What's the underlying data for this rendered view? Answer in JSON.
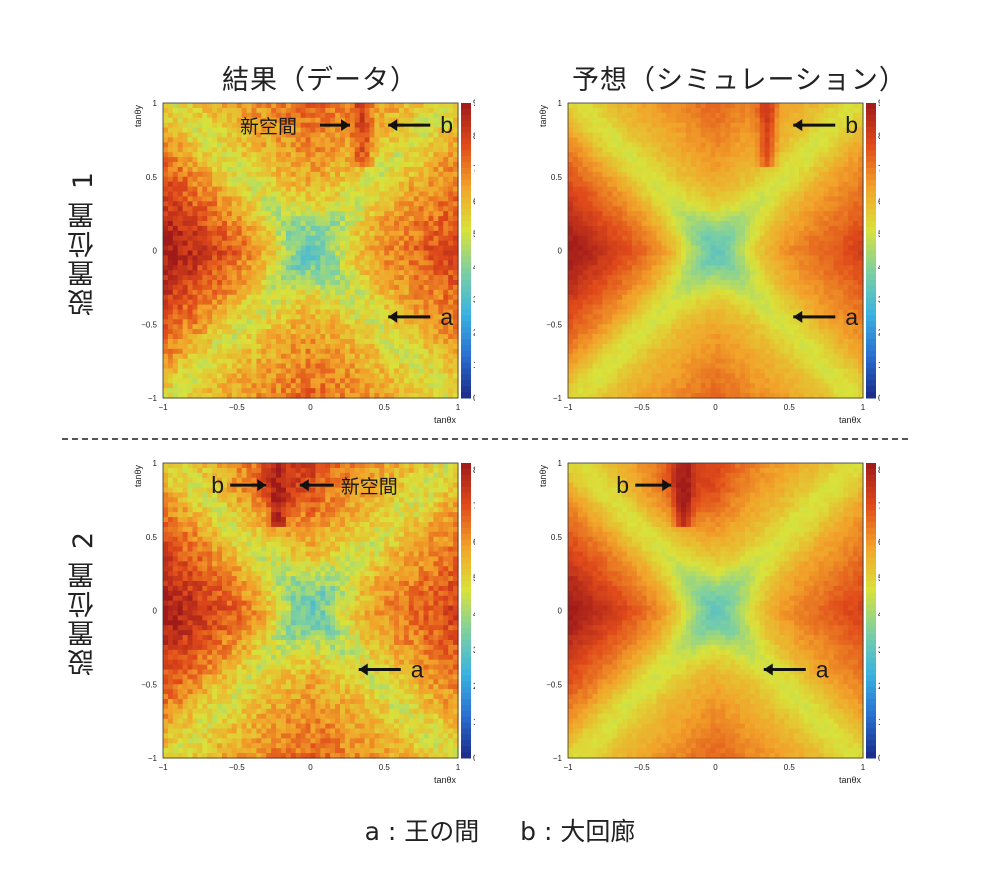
{
  "titles": {
    "col_left": "結果（データ）",
    "col_right": "予想（シミュレーション）",
    "row_top": "設置位置 1",
    "row_bottom": "設置位置 2"
  },
  "footer": "a : 王の間　  b : 大回廊",
  "labels": {
    "new_space": "新空間",
    "a": "a",
    "b": "b"
  },
  "axes": {
    "xlabel": "tanθx",
    "ylabel": "tanθy",
    "ticks": [
      -1,
      -0.5,
      0,
      0.5,
      1
    ],
    "tick_labels": [
      "−1",
      "−0.5",
      "0",
      "0.5",
      "1"
    ]
  },
  "colorscale": [
    "#1b2a88",
    "#2a6fd0",
    "#3ab3e0",
    "#7ed0a0",
    "#d9e23a",
    "#f2a32a",
    "#e04a1a",
    "#a01a1a"
  ],
  "chart_data": [
    {
      "type": "heatmap",
      "id": "pos1-data",
      "xlim": [
        -1,
        1
      ],
      "ylim": [
        -1,
        1
      ],
      "zlim": [
        0,
        9
      ],
      "colorbar_ticks": [
        0,
        1,
        2,
        3,
        4,
        5,
        6,
        7,
        8,
        9
      ],
      "annotations": [
        {
          "text": "新空間",
          "x": 0.2,
          "y": 0.85
        },
        {
          "text": "b",
          "x": 0.5,
          "y": 0.85
        },
        {
          "text": "a",
          "x": 0.5,
          "y": -0.45
        }
      ]
    },
    {
      "type": "heatmap",
      "id": "pos1-sim",
      "xlim": [
        -1,
        1
      ],
      "ylim": [
        -1,
        1
      ],
      "zlim": [
        0,
        9
      ],
      "colorbar_ticks": [
        0,
        1,
        2,
        3,
        4,
        5,
        6,
        7,
        8,
        9
      ],
      "annotations": [
        {
          "text": "b",
          "x": 0.5,
          "y": 0.85
        },
        {
          "text": "a",
          "x": 0.5,
          "y": -0.45
        }
      ]
    },
    {
      "type": "heatmap",
      "id": "pos2-data",
      "xlim": [
        -1,
        1
      ],
      "ylim": [
        -1,
        1
      ],
      "zlim": [
        0,
        8.2
      ],
      "colorbar_ticks": [
        0,
        1,
        2,
        3,
        4,
        5,
        6,
        7,
        8
      ],
      "annotations": [
        {
          "text": "b",
          "x": -0.3,
          "y": 0.85
        },
        {
          "text": "新空間",
          "x": -0.1,
          "y": 0.85
        },
        {
          "text": "a",
          "x": 0.3,
          "y": -0.4
        }
      ]
    },
    {
      "type": "heatmap",
      "id": "pos2-sim",
      "xlim": [
        -1,
        1
      ],
      "ylim": [
        -1,
        1
      ],
      "zlim": [
        0,
        8.2
      ],
      "colorbar_ticks": [
        0,
        1,
        2,
        3,
        4,
        5,
        6,
        7,
        8
      ],
      "annotations": [
        {
          "text": "b",
          "x": -0.3,
          "y": 0.85
        },
        {
          "text": "a",
          "x": 0.3,
          "y": -0.4
        }
      ]
    }
  ]
}
